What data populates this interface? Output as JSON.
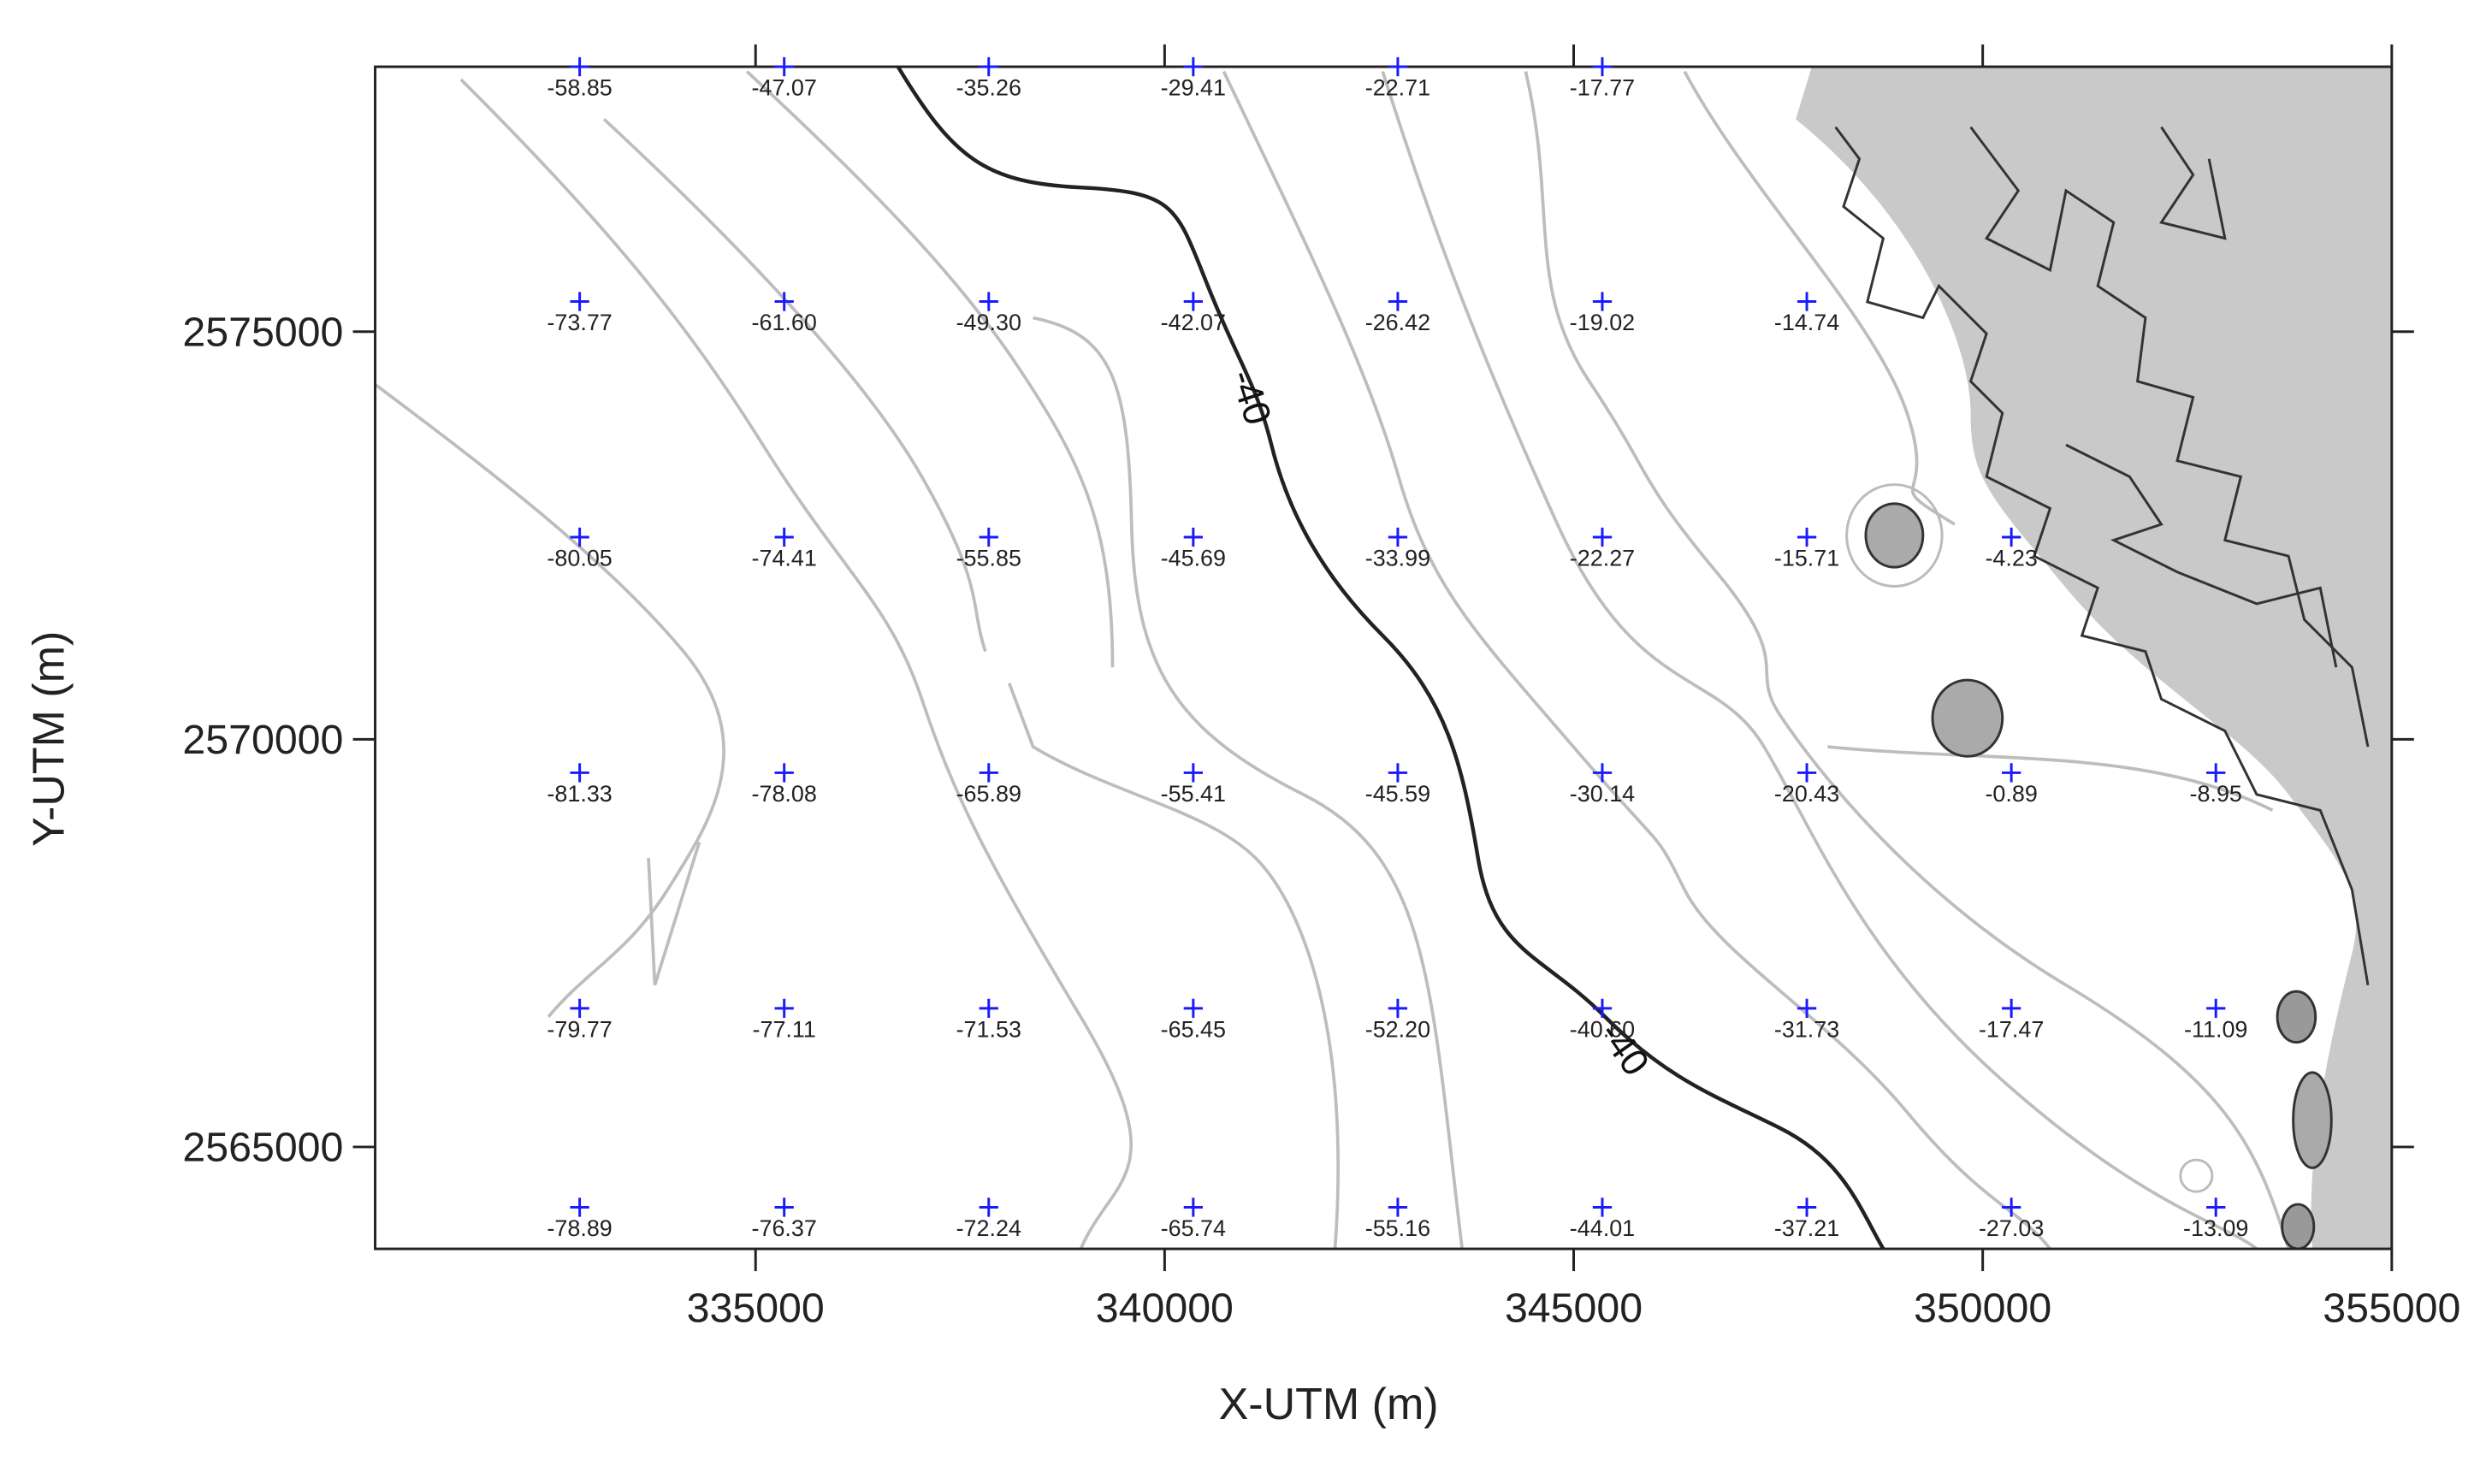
{
  "chart_data": {
    "type": "scatter",
    "xlabel": "X-UTM (m)",
    "ylabel": "Y-UTM (m)",
    "xlim": [
      330350,
      355000
    ],
    "ylim": [
      2563750,
      2578250
    ],
    "xticks": [
      335000,
      340000,
      345000,
      350000,
      355000
    ],
    "yticks": [
      2565000,
      2570000,
      2575000
    ],
    "color": "#1a1aff",
    "contour_labels": [
      "-40",
      "-40"
    ],
    "x": [
      332850,
      335350,
      337850,
      340350,
      342850,
      345350,
      332850,
      335350,
      337850,
      340350,
      342850,
      345350,
      347850,
      332850,
      335350,
      337850,
      340350,
      342850,
      345350,
      347850,
      350350,
      332850,
      335350,
      337850,
      340350,
      342850,
      345350,
      347850,
      350350,
      352850,
      332850,
      335350,
      337850,
      340350,
      342850,
      345350,
      347850,
      350350,
      352850,
      332850,
      335350,
      337850,
      340350,
      342850,
      345350,
      347850,
      350350,
      352850
    ],
    "y": [
      2578250,
      2578250,
      2578250,
      2578250,
      2578250,
      2578250,
      2575370,
      2575370,
      2575370,
      2575370,
      2575370,
      2575370,
      2575370,
      2572480,
      2572480,
      2572480,
      2572480,
      2572480,
      2572480,
      2572480,
      2572480,
      2569590,
      2569590,
      2569590,
      2569590,
      2569590,
      2569590,
      2569590,
      2569590,
      2569590,
      2566700,
      2566700,
      2566700,
      2566700,
      2566700,
      2566700,
      2566700,
      2566700,
      2566700,
      2564260,
      2564260,
      2564260,
      2564260,
      2564260,
      2564260,
      2564260,
      2564260,
      2564260
    ],
    "values": [
      -58.85,
      -47.07,
      -35.26,
      -29.41,
      -22.71,
      -17.77,
      -73.77,
      -61.6,
      -49.3,
      -42.07,
      -26.42,
      -19.02,
      -14.74,
      -80.05,
      -74.41,
      -55.85,
      -45.69,
      -33.99,
      -22.27,
      -15.71,
      -4.23,
      -81.33,
      -78.08,
      -65.89,
      -55.41,
      -45.59,
      -30.14,
      -20.43,
      -0.89,
      -8.95,
      -79.77,
      -77.11,
      -71.53,
      -65.45,
      -52.2,
      -40.6,
      -31.73,
      -17.47,
      -11.09,
      -78.89,
      -76.37,
      -72.24,
      -65.74,
      -55.16,
      -44.01,
      -37.21,
      -27.03,
      -13.09
    ],
    "value_labels": [
      "-58.85",
      "-47.07",
      "-35.26",
      "-29.41",
      "-22.71",
      "-17.77",
      "-73.77",
      "-61.60",
      "-49.30",
      "-42.07",
      "-26.42",
      "-19.02",
      "-14.74",
      "-80.05",
      "-74.41",
      "-55.85",
      "-45.69",
      "-33.99",
      "-22.27",
      "-15.71",
      "-4.23",
      "-81.33",
      "-78.08",
      "-65.89",
      "-55.41",
      "-45.59",
      "-30.14",
      "-20.43",
      "-0.89",
      "-8.95",
      "-79.77",
      "-77.11",
      "-71.53",
      "-65.45",
      "-52.20",
      "-40.60",
      "-31.73",
      "-17.47",
      "-11.09",
      "-78.89",
      "-76.37",
      "-72.24",
      "-65.74",
      "-55.16",
      "-44.01",
      "-37.21",
      "-27.03",
      "-13.09"
    ]
  }
}
